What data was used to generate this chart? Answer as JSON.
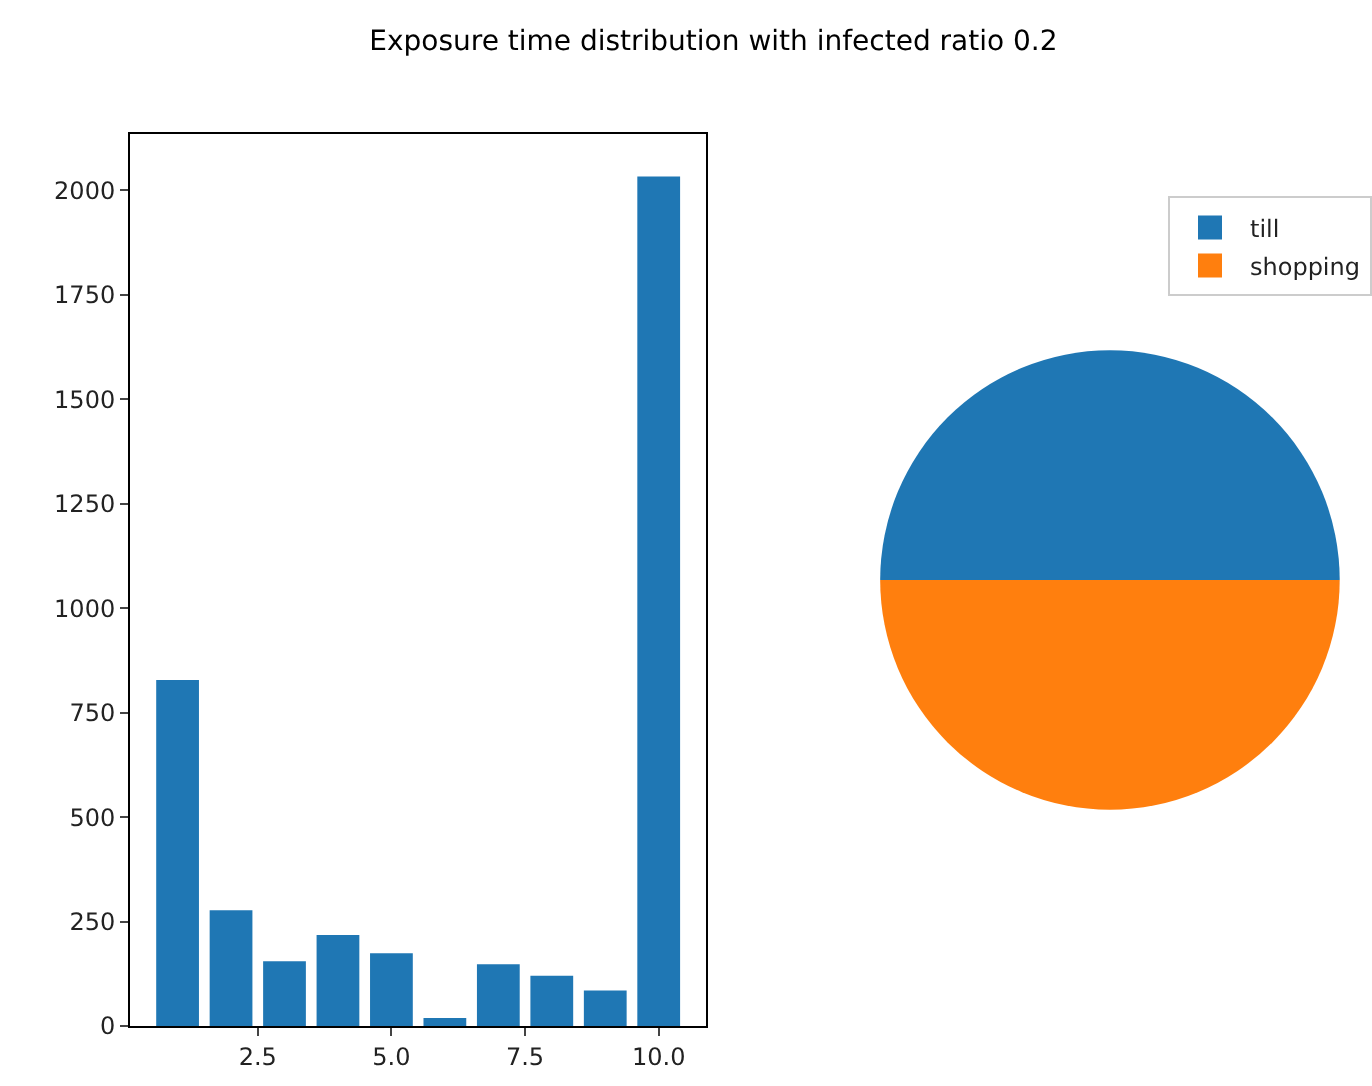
{
  "chart_data": [
    {
      "type": "bar",
      "title": "Exposure time distribution with infected ratio 0.2",
      "x": [
        1,
        2,
        3,
        4,
        5,
        6,
        7,
        8,
        9,
        10
      ],
      "values": [
        828,
        277,
        155,
        218,
        174,
        19,
        148,
        120,
        85,
        2033
      ],
      "color": "#1f77b4",
      "xlim": [
        0.11,
        10.89
      ],
      "xticks": [
        {
          "value": 2.5,
          "label": "2.5"
        },
        {
          "value": 5,
          "label": "5.0"
        },
        {
          "value": 7.5,
          "label": "7.5"
        },
        {
          "value": 10,
          "label": "10.0"
        }
      ],
      "ylim": [
        0,
        2135
      ],
      "yticks": [
        0,
        250,
        500,
        750,
        1000,
        1250,
        1500,
        1750,
        2000
      ]
    },
    {
      "type": "pie",
      "categories": [
        "till",
        "shopping"
      ],
      "values": [
        50,
        50
      ],
      "colors": [
        "#1f77b4",
        "#ff7f0e"
      ],
      "legend": "top right"
    }
  ]
}
